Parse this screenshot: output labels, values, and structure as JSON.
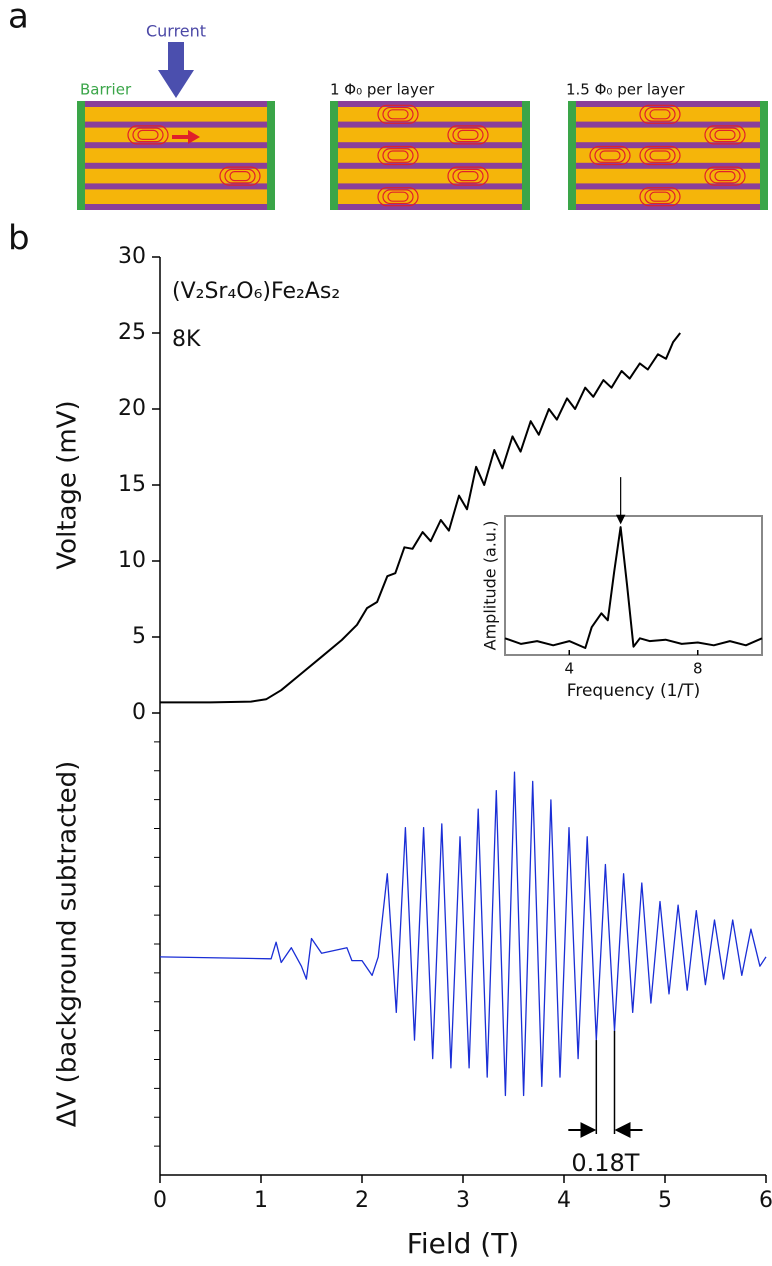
{
  "diagram": {
    "panel_a_label": "a",
    "current": "Current",
    "barrier": "Barrier",
    "captions": [
      "1 Φ₀ per layer",
      "1.5 Φ₀ per layer"
    ],
    "panel_b_label": "b"
  },
  "chart_data": [
    {
      "type": "line",
      "ylabel": "Voltage (mV)",
      "annotations": [
        "(V₂Sr₄O₆)Fe₂As₂",
        "8K"
      ],
      "xlim": [
        0,
        6
      ],
      "ylim": [
        0,
        30
      ],
      "yticks": [
        0,
        5,
        10,
        15,
        20,
        25,
        30
      ],
      "x": [
        0,
        0.5,
        0.9,
        1.05,
        1.2,
        1.4,
        1.6,
        1.8,
        1.95,
        2.05,
        2.15,
        2.25,
        2.33,
        2.42,
        2.5,
        2.6,
        2.68,
        2.78,
        2.86,
        2.96,
        3.04,
        3.13,
        3.21,
        3.31,
        3.39,
        3.49,
        3.57,
        3.67,
        3.75,
        3.85,
        3.93,
        4.03,
        4.11,
        4.21,
        4.29,
        4.39,
        4.47,
        4.57,
        4.65,
        4.75,
        4.83,
        4.93,
        5.01,
        5.08,
        5.15
      ],
      "series": [
        {
          "color": "#000000",
          "values": [
            0.7,
            0.7,
            0.75,
            0.9,
            1.5,
            2.6,
            3.7,
            4.8,
            5.8,
            6.9,
            7.3,
            9.0,
            9.2,
            10.9,
            10.8,
            11.9,
            11.3,
            12.7,
            12.0,
            14.3,
            13.4,
            16.2,
            15.0,
            17.3,
            16.1,
            18.2,
            17.2,
            19.2,
            18.3,
            20.0,
            19.3,
            20.7,
            20.0,
            21.4,
            20.8,
            21.9,
            21.4,
            22.5,
            22.0,
            23.0,
            22.6,
            23.6,
            23.3,
            24.4,
            25.0
          ]
        }
      ]
    },
    {
      "type": "line",
      "xlabel": "Frequency (1/T)",
      "ylabel": "Amplitude (a.u.)",
      "xlim": [
        2,
        10
      ],
      "xticks": [
        4,
        8
      ],
      "ylim": [
        0,
        1
      ],
      "x": [
        2,
        2.5,
        3,
        3.5,
        4,
        4.5,
        4.7,
        5,
        5.2,
        5.4,
        5.6,
        5.8,
        6,
        6.2,
        6.5,
        7,
        7.5,
        8,
        8.5,
        9,
        9.5,
        10
      ],
      "series": [
        {
          "color": "#000000",
          "values": [
            0.12,
            0.08,
            0.1,
            0.07,
            0.1,
            0.05,
            0.2,
            0.3,
            0.25,
            0.6,
            0.92,
            0.5,
            0.06,
            0.12,
            0.1,
            0.11,
            0.08,
            0.09,
            0.07,
            0.1,
            0.07,
            0.12
          ]
        }
      ]
    },
    {
      "type": "line",
      "xlabel": "Field (T)",
      "ylabel": "ΔV (background subtracted)",
      "annotations": [
        "0.18T"
      ],
      "xlim": [
        0,
        6
      ],
      "xticks": [
        0,
        1,
        2,
        3,
        4,
        5,
        6
      ],
      "ylim": [
        -1.18,
        1.32
      ],
      "x": [
        0,
        1.1,
        1.15,
        1.2,
        1.3,
        1.4,
        1.45,
        1.5,
        1.6,
        1.85,
        1.9,
        2.0,
        2.1,
        2.16,
        2.25,
        2.34,
        2.43,
        2.52,
        2.61,
        2.7,
        2.79,
        2.88,
        2.97,
        3.06,
        3.15,
        3.24,
        3.33,
        3.42,
        3.51,
        3.6,
        3.69,
        3.78,
        3.87,
        3.96,
        4.05,
        4.14,
        4.23,
        4.32,
        4.41,
        4.5,
        4.59,
        4.68,
        4.77,
        4.86,
        4.95,
        5.04,
        5.13,
        5.22,
        5.31,
        5.4,
        5.49,
        5.58,
        5.67,
        5.76,
        5.85,
        5.94,
        6.0
      ],
      "series": [
        {
          "color": "#1a2ed6",
          "values": [
            0,
            -0.01,
            0.08,
            -0.03,
            0.05,
            -0.05,
            -0.12,
            0.1,
            0.02,
            0.05,
            -0.02,
            -0.02,
            -0.1,
            0.0,
            0.45,
            -0.3,
            0.7,
            -0.45,
            0.7,
            -0.55,
            0.72,
            -0.6,
            0.65,
            -0.6,
            0.8,
            -0.65,
            0.9,
            -0.75,
            1.0,
            -0.75,
            0.95,
            -0.7,
            0.85,
            -0.65,
            0.7,
            -0.55,
            0.65,
            -0.45,
            0.5,
            -0.4,
            0.45,
            -0.3,
            0.4,
            -0.25,
            0.3,
            -0.2,
            0.28,
            -0.18,
            0.25,
            -0.15,
            0.2,
            -0.12,
            0.2,
            -0.1,
            0.15,
            -0.05,
            0.0
          ]
        }
      ]
    }
  ]
}
